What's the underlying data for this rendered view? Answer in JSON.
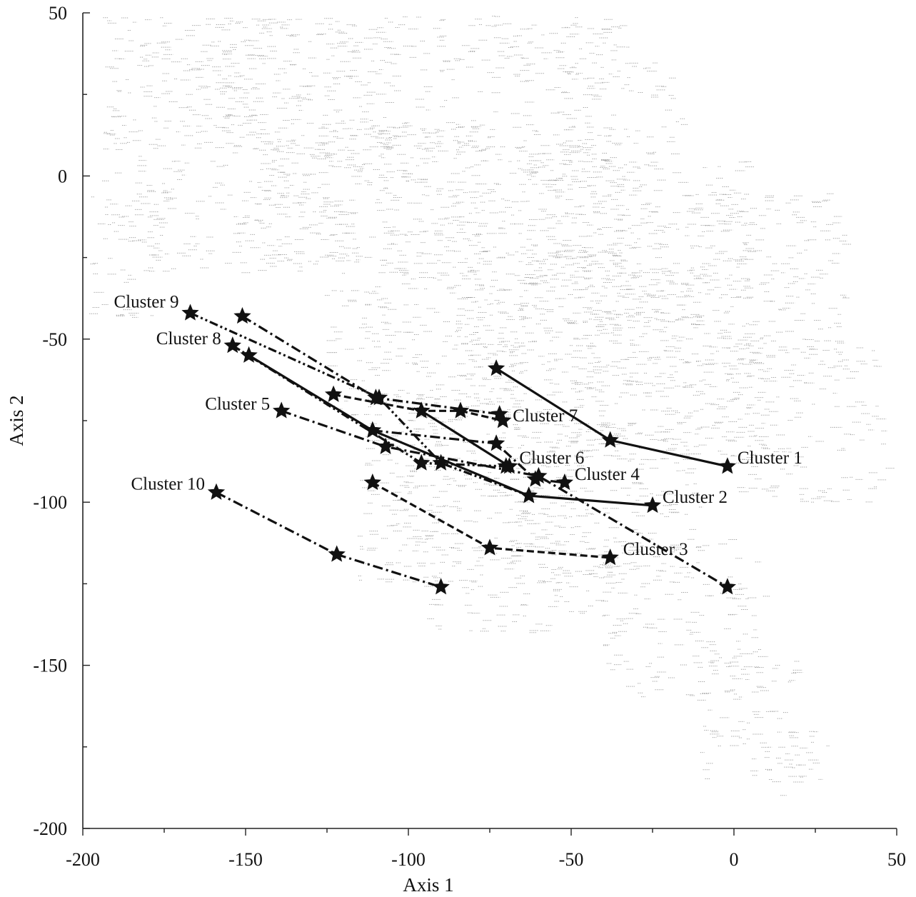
{
  "chart_data": {
    "type": "scatter",
    "title": "",
    "xlabel": "Axis 1",
    "ylabel": "Axis 2",
    "xlim": [
      -200,
      50
    ],
    "ylim": [
      -200,
      50
    ],
    "xticks": [
      -200,
      -150,
      -100,
      -50,
      0,
      50
    ],
    "yticks": [
      50,
      0,
      -50,
      -100,
      -150,
      -200
    ],
    "xtick_labels": [
      "-200",
      "-150",
      "-100",
      "-50",
      "0",
      "50"
    ],
    "ytick_labels": [
      "50",
      "0",
      "-50",
      "-100",
      "-150",
      "-200"
    ],
    "grid": false,
    "legend": "none",
    "background_points": "dense grey point cloud spanning roughly x -195 to 50, y 50 to -195",
    "series": [
      {
        "name": "Cluster 1",
        "line": "solid",
        "x": [
          -73,
          -38,
          -2
        ],
        "y": [
          -59,
          -81,
          -89
        ]
      },
      {
        "name": "Cluster 2",
        "line": "solid",
        "x": [
          -149,
          -111,
          -63,
          -25
        ],
        "y": [
          -55,
          -78,
          -98,
          -101
        ]
      },
      {
        "name": "Cluster 3",
        "line": "dashed",
        "x": [
          -111,
          -75,
          -38
        ],
        "y": [
          -94,
          -114,
          -117
        ]
      },
      {
        "name": "Cluster 4",
        "line": "dash-dot",
        "x": [
          -111,
          -73,
          -61,
          -52
        ],
        "y": [
          -78,
          -82,
          -93,
          -94
        ]
      },
      {
        "name": "Cluster 5",
        "line": "dash-dot",
        "x": [
          -139,
          -107,
          -60,
          -2
        ],
        "y": [
          -72,
          -83,
          -92,
          -126
        ]
      },
      {
        "name": "Cluster 6",
        "line": "solid",
        "x": [
          -96,
          -69
        ],
        "y": [
          -72,
          -89
        ]
      },
      {
        "name": "Cluster 7",
        "line": "dashed",
        "x": [
          -123,
          -96,
          -84,
          -71
        ],
        "y": [
          -67,
          -72,
          -72,
          -75
        ]
      },
      {
        "name": "Cluster 8",
        "line": "dash-dot-dot",
        "x": [
          -154,
          -96,
          -70
        ],
        "y": [
          -52,
          -88,
          -89
        ]
      },
      {
        "name": "Cluster 9",
        "line": "dash-dot-dot",
        "x": [
          -167,
          -109,
          -90,
          -63
        ],
        "y": [
          -42,
          -68,
          -88,
          -98
        ]
      },
      {
        "name": "Cluster 10",
        "line": "dash-dot",
        "x": [
          -159,
          -122,
          -90
        ],
        "y": [
          -97,
          -116,
          -126
        ]
      },
      {
        "name": "",
        "line": "dash-dot",
        "x": [
          -151,
          -110,
          -72
        ],
        "y": [
          -43,
          -68,
          -73
        ]
      }
    ]
  }
}
